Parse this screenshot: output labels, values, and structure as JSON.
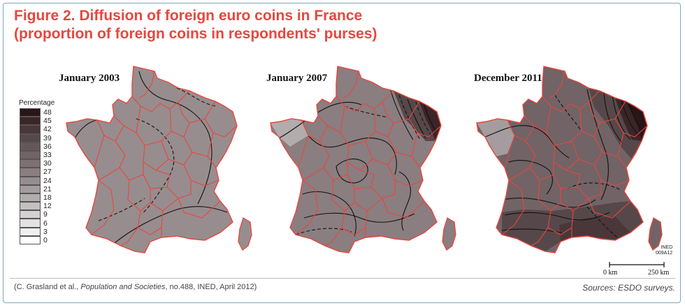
{
  "figure": {
    "title_line1": "Figure 2. Diffusion of foreign euro coins in France",
    "title_line2": "(proportion of foreign coins in respondents' purses)",
    "title_color": "#e8463e"
  },
  "maps": [
    {
      "caption": "January 2003"
    },
    {
      "caption": "January 2007"
    },
    {
      "caption": "December 2011"
    }
  ],
  "legend": {
    "title": "Percentage",
    "classes": [
      {
        "label": "48",
        "color": "#2a1517"
      },
      {
        "label": "45",
        "color": "#3a2527"
      },
      {
        "label": "42",
        "color": "#49373a"
      },
      {
        "label": "39",
        "color": "#56484a"
      },
      {
        "label": "36",
        "color": "#655759"
      },
      {
        "label": "33",
        "color": "#716366"
      },
      {
        "label": "30",
        "color": "#7d7173"
      },
      {
        "label": "27",
        "color": "#8a7e80"
      },
      {
        "label": "24",
        "color": "#978d8f"
      },
      {
        "label": "21",
        "color": "#a49c9e"
      },
      {
        "label": "18",
        "color": "#b2acad"
      },
      {
        "label": "12",
        "color": "#c4c0c1"
      },
      {
        "label": "9",
        "color": "#d4d1d2"
      },
      {
        "label": "6",
        "color": "#e3e1e2"
      },
      {
        "label": "3",
        "color": "#f0eff0"
      },
      {
        "label": "0",
        "color": "#ffffff"
      }
    ]
  },
  "colors": {
    "region_border": "#e8463e",
    "isoline": "#111111"
  },
  "scale": {
    "left_label": "0 km",
    "right_label": "250 km"
  },
  "credit": {
    "code_line1": "INED",
    "code_line2": "009A12"
  },
  "footer": {
    "citation_prefix": "(C. Grasland et al., ",
    "citation_journal": "Population and Societies",
    "citation_suffix": ", no.488, INED, April 2012)",
    "sources": "Sources: ESDO surveys."
  }
}
